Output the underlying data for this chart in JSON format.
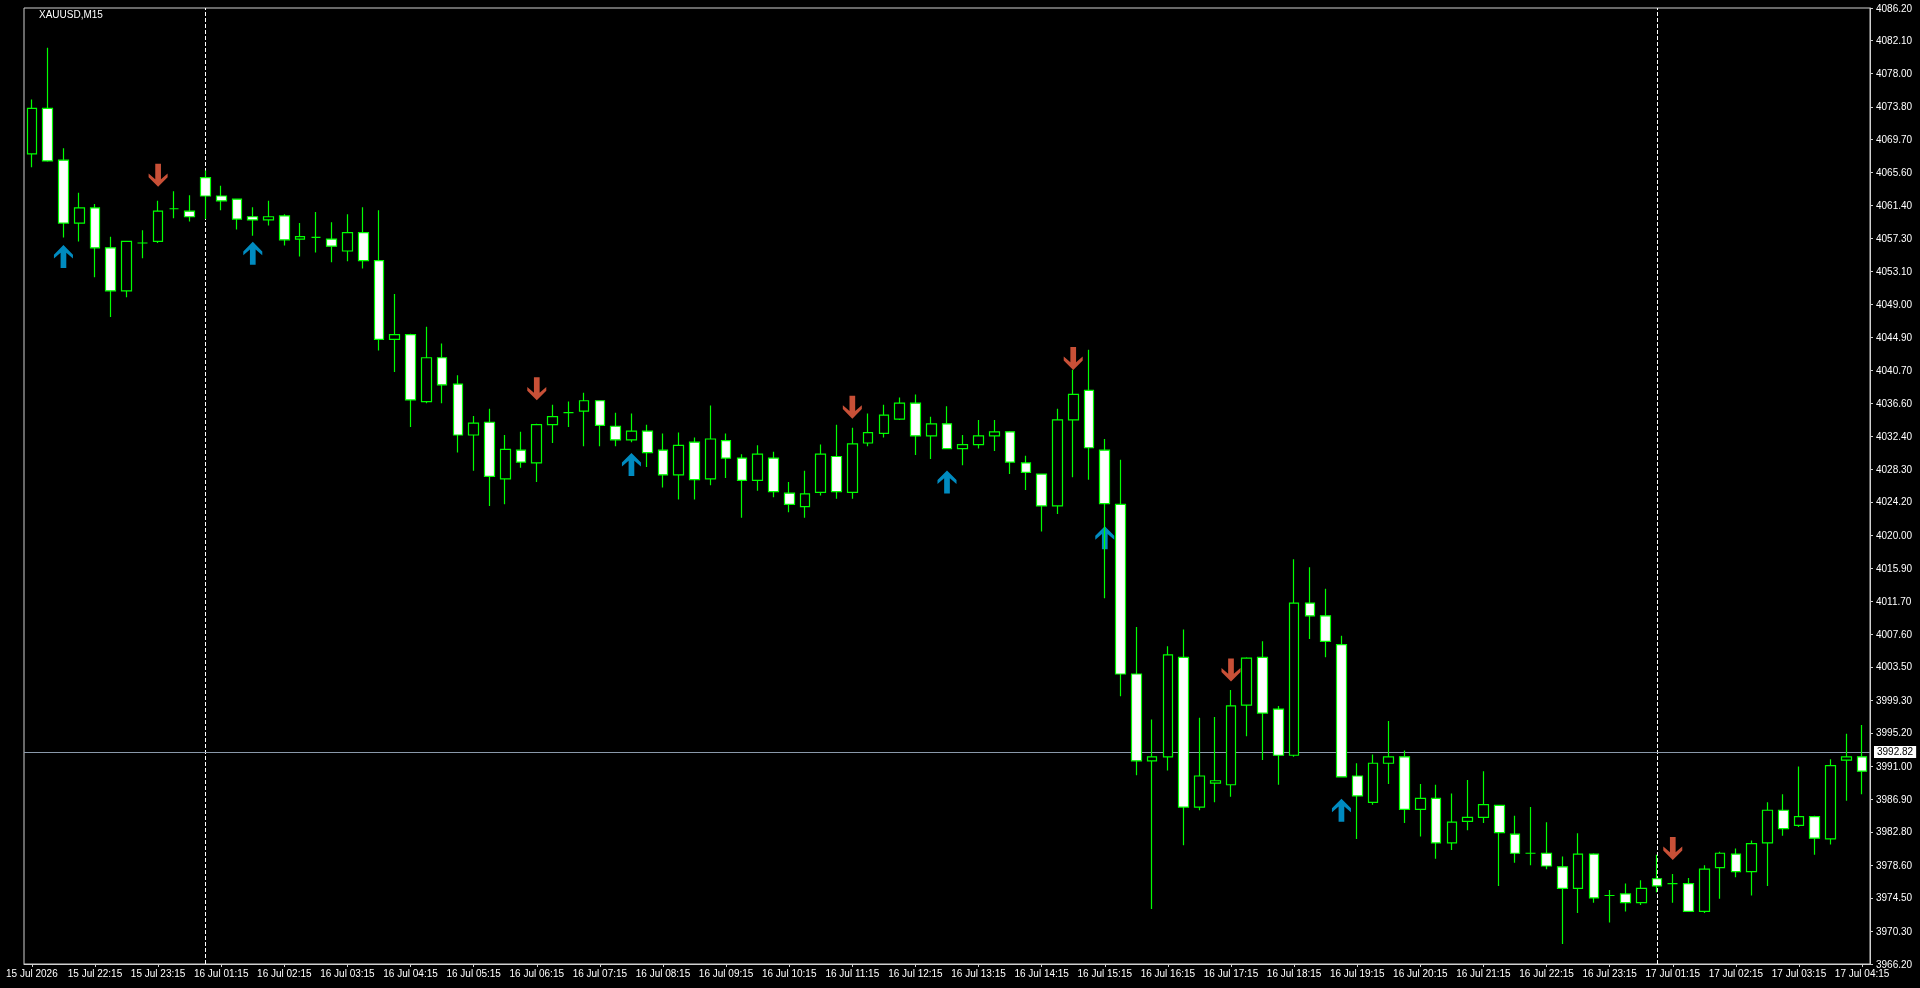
{
  "chart_data": {
    "type": "candlestick",
    "title": "XAUUSD,M15",
    "categories": [
      "15 Jul 2026",
      null,
      null,
      null,
      "15 Jul 22:15",
      null,
      null,
      null,
      "15 Jul 23:15",
      null,
      null,
      null,
      "16 Jul 01:15",
      null,
      null,
      null,
      "16 Jul 02:15",
      null,
      null,
      null,
      "16 Jul 03:15",
      null,
      null,
      null,
      "16 Jul 04:15",
      null,
      null,
      null,
      "16 Jul 05:15",
      null,
      null,
      null,
      "16 Jul 06:15",
      null,
      null,
      null,
      "16 Jul 07:15",
      null,
      null,
      null,
      "16 Jul 08:15",
      null,
      null,
      null,
      "16 Jul 09:15",
      null,
      null,
      null,
      "16 Jul 10:15",
      null,
      null,
      null,
      "16 Jul 11:15",
      null,
      null,
      null,
      "16 Jul 12:15",
      null,
      null,
      null,
      "16 Jul 13:15",
      null,
      null,
      null,
      "16 Jul 14:15",
      null,
      null,
      null,
      "16 Jul 15:15",
      null,
      null,
      null,
      "16 Jul 16:15",
      null,
      null,
      null,
      "16 Jul 17:15",
      null,
      null,
      null,
      "16 Jul 18:15",
      null,
      null,
      null,
      "16 Jul 19:15",
      null,
      null,
      null,
      "16 Jul 20:15",
      null,
      null,
      null,
      "16 Jul 21:15",
      null,
      null,
      null,
      "16 Jul 22:15",
      null,
      null,
      null,
      "16 Jul 23:15",
      null,
      null,
      null,
      "17 Jul 01:15",
      null,
      null,
      null,
      "17 Jul 02:15",
      null,
      null,
      null,
      "17 Jul 03:15",
      null,
      null,
      null,
      "17 Jul 04:15"
    ],
    "series": [
      {
        "color": "#00ff00",
        "ohlc": [
          [
            4067.9,
            4074.7,
            4066.2,
            4073.6
          ],
          [
            4073.6,
            4081.2,
            4066.9,
            4067.0
          ],
          [
            4067.1,
            4068.6,
            4057.4,
            4059.2
          ],
          [
            4059.2,
            4063.0,
            4056.9,
            4061.1
          ],
          [
            4061.1,
            4061.6,
            4052.4,
            4056.1
          ],
          [
            4056.1,
            4057.5,
            4047.4,
            4050.7
          ],
          [
            4050.7,
            4056.9,
            4049.9,
            4056.9
          ],
          [
            4056.7,
            4058.3,
            4054.8,
            4056.7
          ],
          [
            4056.9,
            4062.0,
            4056.7,
            4060.7
          ],
          [
            4061.0,
            4063.2,
            4059.8,
            4061.0
          ],
          [
            4060.7,
            4062.7,
            4059.4,
            4060.0
          ],
          [
            4064.9,
            4065.8,
            4059.7,
            4062.6
          ],
          [
            4062.6,
            4063.9,
            4060.8,
            4062.0
          ],
          [
            4062.2,
            4062.2,
            4058.4,
            4059.7
          ],
          [
            4060.0,
            4061.2,
            4057.6,
            4059.6
          ],
          [
            4059.6,
            4062.0,
            4058.9,
            4060.0
          ],
          [
            4060.1,
            4060.3,
            4056.4,
            4057.1
          ],
          [
            4057.2,
            4059.2,
            4055.0,
            4057.5
          ],
          [
            4057.4,
            4060.6,
            4055.5,
            4057.4
          ],
          [
            4057.2,
            4059.3,
            4054.3,
            4056.3
          ],
          [
            4055.7,
            4060.3,
            4054.4,
            4058.0
          ],
          [
            4058.0,
            4061.2,
            4053.5,
            4054.5
          ],
          [
            4054.5,
            4060.8,
            4043.2,
            4044.6
          ],
          [
            4044.6,
            4050.3,
            4040.5,
            4045.2
          ],
          [
            4045.2,
            4045.3,
            4033.6,
            4037.0
          ],
          [
            4036.8,
            4046.2,
            4036.6,
            4042.3
          ],
          [
            4042.3,
            4044.1,
            4036.6,
            4038.9
          ],
          [
            4039.0,
            4040.1,
            4030.4,
            4032.6
          ],
          [
            4032.6,
            4035.0,
            4028.1,
            4034.1
          ],
          [
            4034.2,
            4035.9,
            4023.7,
            4027.4
          ],
          [
            4027.1,
            4032.6,
            4023.9,
            4030.8
          ],
          [
            4030.7,
            4033.0,
            4028.5,
            4029.2
          ],
          [
            4029.1,
            4034.0,
            4026.7,
            4033.9
          ],
          [
            4033.9,
            4036.4,
            4031.6,
            4034.9
          ],
          [
            4035.4,
            4036.8,
            4033.6,
            4035.4
          ],
          [
            4035.6,
            4037.9,
            4031.2,
            4036.9
          ],
          [
            4036.9,
            4036.9,
            4031.2,
            4033.8
          ],
          [
            4033.7,
            4035.4,
            4031.2,
            4032.0
          ],
          [
            4032.0,
            4035.3,
            4031.7,
            4033.1
          ],
          [
            4033.1,
            4033.9,
            4028.6,
            4030.4
          ],
          [
            4030.7,
            4032.8,
            4026.0,
            4027.6
          ],
          [
            4027.6,
            4032.9,
            4024.5,
            4031.3
          ],
          [
            4031.7,
            4032.3,
            4024.5,
            4027.0
          ],
          [
            4027.1,
            4036.3,
            4026.3,
            4032.1
          ],
          [
            4031.9,
            4032.8,
            4027.2,
            4029.7
          ],
          [
            4029.7,
            4030.2,
            4022.2,
            4026.9
          ],
          [
            4026.9,
            4031.3,
            4025.6,
            4030.2
          ],
          [
            4029.7,
            4030.5,
            4024.8,
            4025.5
          ],
          [
            4025.3,
            4026.7,
            4022.9,
            4023.9
          ],
          [
            4023.6,
            4028.1,
            4022.2,
            4025.2
          ],
          [
            4025.4,
            4031.4,
            4025.0,
            4030.2
          ],
          [
            4029.9,
            4033.9,
            4024.6,
            4025.5
          ],
          [
            4025.4,
            4033.5,
            4024.6,
            4031.5
          ],
          [
            4031.6,
            4035.3,
            4031.2,
            4032.9
          ],
          [
            4032.8,
            4036.4,
            4032.3,
            4035.1
          ],
          [
            4034.6,
            4037.3,
            4034.5,
            4036.6
          ],
          [
            4036.6,
            4037.7,
            4030.1,
            4032.5
          ],
          [
            4032.5,
            4034.9,
            4029.6,
            4034.0
          ],
          [
            4034.0,
            4036.2,
            4030.9,
            4030.9
          ],
          [
            4030.9,
            4032.6,
            4028.8,
            4031.4
          ],
          [
            4031.4,
            4034.5,
            4030.9,
            4032.5
          ],
          [
            4032.5,
            4034.5,
            4030.6,
            4033.0
          ],
          [
            4033.0,
            4033.1,
            4027.7,
            4029.2
          ],
          [
            4029.1,
            4030.0,
            4025.7,
            4027.9
          ],
          [
            4027.7,
            4027.7,
            4020.5,
            4023.7
          ],
          [
            4023.7,
            4035.9,
            4022.7,
            4034.5
          ],
          [
            4034.5,
            4040.8,
            4027.3,
            4037.7
          ],
          [
            4038.2,
            4043.3,
            4027.0,
            4031.0
          ],
          [
            4030.7,
            4032.1,
            4012.1,
            4024.0
          ],
          [
            4023.9,
            4029.5,
            3999.8,
            4002.6
          ],
          [
            4002.6,
            4008.5,
            3989.9,
            3991.7
          ],
          [
            3991.7,
            3996.9,
            3973.1,
            3992.2
          ],
          [
            3992.2,
            4006.1,
            3990.5,
            4005.0
          ],
          [
            4004.7,
            4008.2,
            3981.1,
            3985.9
          ],
          [
            3985.9,
            3997.1,
            3985.5,
            3989.8
          ],
          [
            3988.9,
            3997.2,
            3986.5,
            3989.2
          ],
          [
            3988.7,
            4000.6,
            3987.2,
            3998.6
          ],
          [
            3998.7,
            4004.7,
            3994.8,
            4004.6
          ],
          [
            4004.7,
            4006.7,
            3991.8,
            3997.7
          ],
          [
            3998.2,
            3998.6,
            3988.7,
            3992.4
          ],
          [
            3992.4,
            4017.0,
            3992.2,
            4011.5
          ],
          [
            4011.5,
            4016.0,
            4007.0,
            4009.9
          ],
          [
            4009.9,
            4013.3,
            4004.7,
            4006.7
          ],
          [
            4006.3,
            4007.4,
            3989.7,
            3989.7
          ],
          [
            3989.8,
            3991.4,
            3981.9,
            3987.3
          ],
          [
            3986.5,
            3992.5,
            3986.2,
            3991.4
          ],
          [
            3991.4,
            3996.7,
            3988.8,
            3992.2
          ],
          [
            3992.2,
            3993.0,
            3983.9,
            3985.6
          ],
          [
            3985.6,
            3988.8,
            3982.2,
            3987.0
          ],
          [
            3987.0,
            3988.7,
            3979.4,
            3981.4
          ],
          [
            3981.4,
            3987.6,
            3980.5,
            3984.0
          ],
          [
            3984.1,
            3989.3,
            3983.0,
            3984.6
          ],
          [
            3984.6,
            3990.4,
            3983.9,
            3986.2
          ],
          [
            3986.1,
            3986.1,
            3976.0,
            3982.7
          ],
          [
            3982.5,
            3984.8,
            3978.9,
            3980.1
          ],
          [
            3980.1,
            3985.9,
            3978.6,
            3980.1
          ],
          [
            3980.1,
            3984.0,
            3978.1,
            3978.5
          ],
          [
            3978.4,
            3979.7,
            3968.7,
            3975.7
          ],
          [
            3975.7,
            3982.6,
            3972.6,
            3980.0
          ],
          [
            3980.0,
            3980.1,
            3973.9,
            3974.5
          ],
          [
            3974.8,
            3975.5,
            3971.4,
            3974.8
          ],
          [
            3975.0,
            3976.3,
            3972.8,
            3973.9
          ],
          [
            3973.9,
            3976.7,
            3973.6,
            3975.7
          ],
          [
            3976.9,
            3979.9,
            3975.2,
            3976.0
          ],
          [
            3976.3,
            3977.5,
            3973.9,
            3976.3
          ],
          [
            3976.3,
            3977.0,
            3972.8,
            3972.8
          ],
          [
            3972.8,
            3978.6,
            3972.6,
            3978.1
          ],
          [
            3978.3,
            3980.3,
            3974.4,
            3980.1
          ],
          [
            3980.0,
            3980.7,
            3977.1,
            3977.8
          ],
          [
            3977.8,
            3981.7,
            3974.8,
            3981.3
          ],
          [
            3981.4,
            3986.5,
            3976.0,
            3985.5
          ],
          [
            3985.5,
            3987.5,
            3982.3,
            3983.2
          ],
          [
            3983.6,
            3991.0,
            3983.4,
            3984.7
          ],
          [
            3984.7,
            3984.8,
            3979.9,
            3982.0
          ],
          [
            3981.9,
            3991.9,
            3981.2,
            3991.1
          ],
          [
            3991.8,
            3995.1,
            3986.7,
            3992.2
          ],
          [
            3992.2,
            3996.2,
            3987.5,
            3990.4
          ]
        ]
      },
      {
        "type": "scatter",
        "color": "#fa6445",
        "marker": "triangle",
        "values": [
          null,
          null,
          null,
          null,
          null,
          null,
          null,
          null,
          4065.2,
          null,
          null,
          null,
          null,
          null,
          null,
          null,
          null,
          null,
          null,
          null,
          null,
          null,
          null,
          null,
          null,
          null,
          null,
          null,
          null,
          null,
          null,
          null,
          4038.4,
          null,
          null,
          null,
          null,
          null,
          null,
          null,
          null,
          null,
          null,
          null,
          null,
          null,
          null,
          null,
          null,
          null,
          null,
          null,
          4036.1,
          null,
          null,
          null,
          null,
          null,
          null,
          null,
          null,
          null,
          null,
          null,
          null,
          null,
          4042.2,
          null,
          null,
          null,
          null,
          null,
          null,
          null,
          null,
          null,
          4003.1,
          null,
          null,
          null,
          null,
          null,
          null,
          null,
          null,
          null,
          null,
          null,
          null,
          null,
          null,
          null,
          null,
          null,
          null,
          null,
          null,
          null,
          null,
          null,
          null,
          null,
          null,
          null,
          3980.7,
          null,
          null,
          null,
          null,
          null,
          null,
          null,
          null,
          null,
          null,
          null,
          null
        ]
      },
      {
        "type": "scatter",
        "color": "#00aef0",
        "marker": "triangle",
        "values": [
          null,
          null,
          4055.0,
          null,
          null,
          null,
          null,
          null,
          null,
          null,
          null,
          null,
          null,
          null,
          4055.4,
          null,
          null,
          null,
          null,
          null,
          null,
          null,
          null,
          null,
          null,
          null,
          null,
          null,
          null,
          null,
          null,
          null,
          null,
          null,
          null,
          null,
          null,
          null,
          4028.9,
          null,
          null,
          null,
          null,
          null,
          null,
          null,
          null,
          null,
          null,
          null,
          null,
          null,
          null,
          null,
          null,
          null,
          null,
          null,
          4026.7,
          null,
          null,
          null,
          null,
          null,
          null,
          null,
          null,
          null,
          4019.7,
          null,
          null,
          null,
          null,
          null,
          null,
          null,
          null,
          null,
          null,
          null,
          null,
          null,
          null,
          3985.5,
          null,
          null,
          null,
          null,
          null,
          null,
          null,
          null,
          null,
          null,
          null,
          null,
          null,
          null,
          null,
          null,
          null,
          null,
          null,
          null,
          null,
          null,
          null,
          null,
          null,
          null,
          null,
          null,
          null,
          null,
          null,
          null,
          null
        ]
      }
    ],
    "ylim": [
      3966.2,
      4086.2
    ],
    "yticks": [
      {
        "value": 4086.2,
        "label": "4086.20"
      },
      {
        "value": 4082.1,
        "label": "4082.10"
      },
      {
        "value": 4078,
        "label": "4078.00"
      },
      {
        "value": 4073.8,
        "label": "4073.80"
      },
      {
        "value": 4069.7,
        "label": "4069.70"
      },
      {
        "value": 4065.6,
        "label": "4065.60"
      },
      {
        "value": 4061.4,
        "label": "4061.40"
      },
      {
        "value": 4057.3,
        "label": "4057.30"
      },
      {
        "value": 4053.1,
        "label": "4053.10"
      },
      {
        "value": 4049,
        "label": "4049.00"
      },
      {
        "value": 4044.9,
        "label": "4044.90"
      },
      {
        "value": 4040.7,
        "label": "4040.70"
      },
      {
        "value": 4036.6,
        "label": "4036.60"
      },
      {
        "value": 4032.4,
        "label": "4032.40"
      },
      {
        "value": 4028.3,
        "label": "4028.30"
      },
      {
        "value": 4024.2,
        "label": "4024.20"
      },
      {
        "value": 4020,
        "label": "4020.00"
      },
      {
        "value": 4015.9,
        "label": "4015.90"
      },
      {
        "value": 4011.7,
        "label": "4011.70"
      },
      {
        "value": 4007.6,
        "label": "4007.60"
      },
      {
        "value": 4003.5,
        "label": "4003.50"
      },
      {
        "value": 3999.3,
        "label": "3999.30"
      },
      {
        "value": 3995.2,
        "label": "3995.20"
      },
      {
        "value": 3991,
        "label": "3991.00"
      },
      {
        "value": 3986.9,
        "label": "3986.90"
      },
      {
        "value": 3982.8,
        "label": "3982.80"
      },
      {
        "value": 3978.6,
        "label": "3978.60"
      },
      {
        "value": 3974.5,
        "label": "3974.50"
      },
      {
        "value": 3970.3,
        "label": "3970.30"
      },
      {
        "value": 3966.2,
        "label": "3966.20"
      }
    ],
    "ref_lines": [
      {
        "axis": "y",
        "value": 3992.82,
        "label": "3992.82",
        "color": "#8a99aa",
        "line_style": "solid"
      }
    ]
  }
}
